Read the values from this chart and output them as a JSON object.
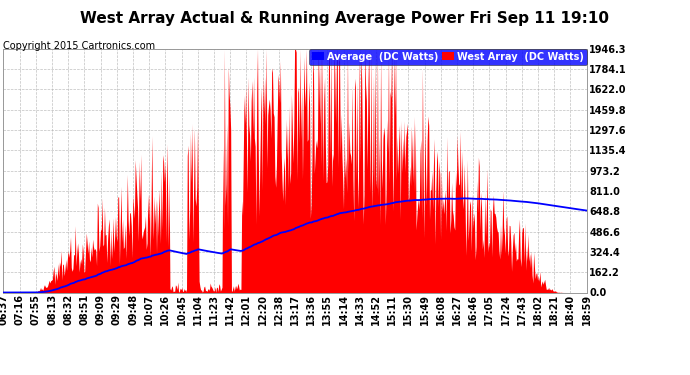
{
  "title": "West Array Actual & Running Average Power Fri Sep 11 19:10",
  "copyright": "Copyright 2015 Cartronics.com",
  "yticks": [
    0.0,
    162.2,
    324.4,
    486.6,
    648.8,
    811.0,
    973.2,
    1135.4,
    1297.6,
    1459.8,
    1622.0,
    1784.1,
    1946.3
  ],
  "ymax": 1946.3,
  "ymin": 0.0,
  "legend_avg_label": "Average  (DC Watts)",
  "legend_west_label": "West Array  (DC Watts)",
  "avg_color": "#0000ff",
  "west_color": "#ff0000",
  "bg_color": "#ffffff",
  "grid_color": "#b0b0b0",
  "title_fontsize": 11,
  "copyright_fontsize": 7,
  "legend_fontsize": 7,
  "tick_fontsize": 7,
  "x_tick_labels": [
    "06:37",
    "07:16",
    "07:55",
    "08:13",
    "08:32",
    "08:51",
    "09:09",
    "09:29",
    "09:48",
    "10:07",
    "10:26",
    "10:45",
    "11:04",
    "11:23",
    "11:42",
    "12:01",
    "12:20",
    "12:38",
    "13:17",
    "13:36",
    "13:55",
    "14:14",
    "14:33",
    "14:52",
    "15:11",
    "15:30",
    "15:49",
    "16:08",
    "16:27",
    "16:46",
    "17:05",
    "17:24",
    "17:43",
    "18:02",
    "18:21",
    "18:40",
    "18:59"
  ],
  "num_points": 740
}
